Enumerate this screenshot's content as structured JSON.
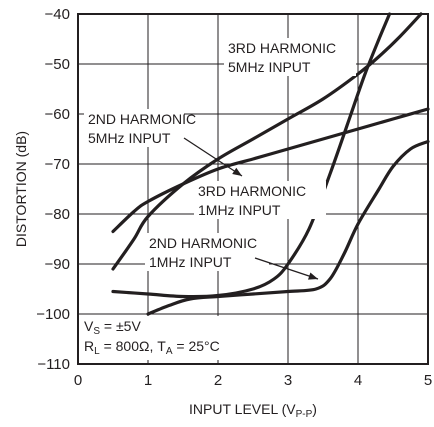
{
  "chart_data": {
    "type": "line",
    "xlabel_main": "INPUT LEVEL (V",
    "xlabel_sub": "P-P",
    "xlabel_close": ")",
    "ylabel": "DISTORTION (dB)",
    "xlim": [
      0,
      5
    ],
    "ylim": [
      -110,
      -40
    ],
    "x_ticks": [
      0,
      1,
      2,
      3,
      4,
      5
    ],
    "y_ticks": [
      -110,
      -100,
      -90,
      -80,
      -70,
      -60,
      -50,
      -40
    ],
    "x_tick_labels": [
      "0",
      "1",
      "2",
      "3",
      "4",
      "5"
    ],
    "y_tick_labels": [
      "−110",
      "−100",
      "−90",
      "−80",
      "−70",
      "−60",
      "−50",
      "−40"
    ],
    "grid": true,
    "series": [
      {
        "name": "3RD HARMONIC 5MHz INPUT",
        "label_lines": [
          "3RD HARMONIC",
          "5MHz INPUT"
        ],
        "points": [
          [
            0.5,
            -91
          ],
          [
            0.8,
            -85
          ],
          [
            1.0,
            -80.5
          ],
          [
            1.5,
            -74
          ],
          [
            2.0,
            -69
          ],
          [
            2.5,
            -65
          ],
          [
            3.0,
            -61
          ],
          [
            3.5,
            -57
          ],
          [
            4.0,
            -52
          ],
          [
            4.3,
            -48.5
          ],
          [
            4.6,
            -44.5
          ],
          [
            4.9,
            -40
          ]
        ]
      },
      {
        "name": "2ND HARMONIC 5MHz INPUT",
        "label_lines": [
          "2ND HARMONIC",
          "5MHz INPUT"
        ],
        "points": [
          [
            0.5,
            -83.5
          ],
          [
            0.8,
            -79.5
          ],
          [
            1.0,
            -77.5
          ],
          [
            1.5,
            -74
          ],
          [
            2.0,
            -71
          ],
          [
            2.5,
            -69
          ],
          [
            3.0,
            -67
          ],
          [
            3.5,
            -65
          ],
          [
            4.0,
            -63
          ],
          [
            4.5,
            -61
          ],
          [
            5.0,
            -59
          ]
        ]
      },
      {
        "name": "3RD HARMONIC 1MHz INPUT",
        "label_lines": [
          "3RD HARMONIC",
          "1MHz INPUT"
        ],
        "points": [
          [
            0.5,
            -95.5
          ],
          [
            1.0,
            -96
          ],
          [
            1.5,
            -96.5
          ],
          [
            2.0,
            -96.3
          ],
          [
            2.5,
            -95
          ],
          [
            2.8,
            -93
          ],
          [
            3.0,
            -90
          ],
          [
            3.3,
            -83
          ],
          [
            3.6,
            -72
          ],
          [
            3.9,
            -60
          ],
          [
            4.1,
            -52
          ],
          [
            4.3,
            -45
          ],
          [
            4.45,
            -40
          ]
        ]
      },
      {
        "name": "2ND HARMONIC 1MHz INPUT",
        "label_lines": [
          "2ND HARMONIC",
          "1MHz INPUT"
        ],
        "points": [
          [
            1.0,
            -100
          ],
          [
            1.3,
            -98.3
          ],
          [
            1.6,
            -97
          ],
          [
            2.0,
            -96.5
          ],
          [
            2.5,
            -96
          ],
          [
            3.0,
            -95.5
          ],
          [
            3.4,
            -95
          ],
          [
            3.6,
            -93
          ],
          [
            3.8,
            -88
          ],
          [
            4.0,
            -82
          ],
          [
            4.3,
            -75
          ],
          [
            4.5,
            -70.5
          ],
          [
            4.75,
            -67
          ],
          [
            5.0,
            -65.5
          ]
        ]
      }
    ],
    "conditions": {
      "line1_main": "V",
      "line1_sub": "S",
      "line1_rest": " = ±5V",
      "line2_a": "R",
      "line2_a_sub": "L",
      "line2_b": " = 800Ω, T",
      "line2_b_sub": "A",
      "line2_c": " = 25°C"
    }
  }
}
